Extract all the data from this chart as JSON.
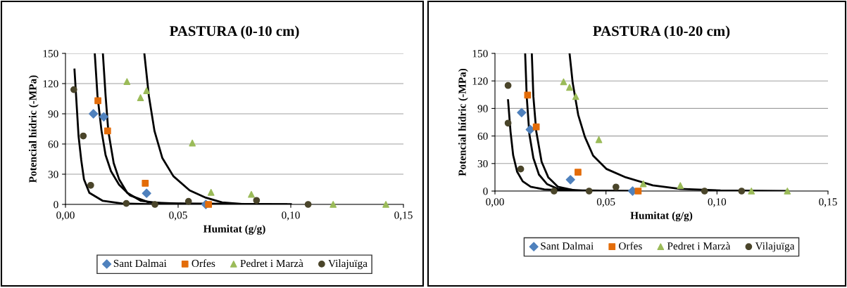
{
  "chart_data": [
    {
      "type": "scatter",
      "title": "PASTURA (0-10 cm)",
      "xlabel": "Humitat (g/g)",
      "ylabel": "Potencial hídric (-MPa)",
      "xlim": [
        0,
        0.15
      ],
      "xticks": [
        {
          "value": 0,
          "label": "0,00"
        },
        {
          "value": 0.05,
          "label": "0,05"
        },
        {
          "value": 0.1,
          "label": "0,10"
        },
        {
          "value": 0.15,
          "label": "0,15"
        }
      ],
      "ylim": [
        0,
        150
      ],
      "yticks": [
        0,
        30,
        60,
        90,
        120,
        150
      ],
      "grid": "y",
      "legend": "bottom",
      "series": [
        {
          "name": "Sant Dalmai",
          "color": "#4f81bd",
          "marker": "diamond",
          "x": [
            0.0124,
            0.017,
            0.036,
            0.0623
          ],
          "values": [
            90,
            87,
            11,
            0
          ]
        },
        {
          "name": "Orfes",
          "color": "#e36c09",
          "marker": "square",
          "x": [
            0.0144,
            0.0187,
            0.0354,
            0.0635
          ],
          "values": [
            103,
            73,
            21,
            0
          ]
        },
        {
          "name": "Pedret i Marzà",
          "color": "#9bbb59",
          "marker": "triangle",
          "x": [
            0.0273,
            0.0333,
            0.036,
            0.0563,
            0.0646,
            0.0825,
            0.1188,
            0.1422
          ],
          "values": [
            122,
            106,
            113,
            61,
            12,
            10,
            0,
            0
          ]
        },
        {
          "name": "Vilajuïga",
          "color": "#4a452a",
          "marker": "circle",
          "x": [
            0.0037,
            0.0079,
            0.0112,
            0.027,
            0.0397,
            0.0546,
            0.0848,
            0.1077
          ],
          "values": [
            114,
            68,
            19,
            1,
            0,
            3,
            4,
            0
          ]
        },
        {
          "type": "line",
          "color": "#000000",
          "marker": "none",
          "x": [
            0.004,
            0.0058,
            0.007,
            0.0082,
            0.0106,
            0.0166,
            0.025,
            0.037,
            0.091
          ],
          "values": [
            134,
            68,
            44,
            25,
            11.5,
            3.5,
            1,
            0.2,
            0
          ]
        },
        {
          "type": "line",
          "color": "#000000",
          "marker": "none",
          "x": [
            0.013,
            0.0142,
            0.016,
            0.0178,
            0.0202,
            0.0238,
            0.0286,
            0.037,
            0.0551,
            0.1
          ],
          "values": [
            150,
            108,
            73,
            49,
            33,
            19.5,
            9,
            2,
            0.3,
            0
          ]
        },
        {
          "type": "line",
          "color": "#000000",
          "marker": "none",
          "x": [
            0.0166,
            0.0178,
            0.019,
            0.0214,
            0.0238,
            0.0274,
            0.0335,
            0.043,
            0.1
          ],
          "values": [
            150,
            108,
            73,
            41,
            25,
            11.5,
            3.5,
            1,
            0
          ]
        },
        {
          "type": "line",
          "color": "#000000",
          "marker": "none",
          "x": [
            0.035,
            0.037,
            0.0395,
            0.043,
            0.0479,
            0.0551,
            0.0623,
            0.0695,
            0.0792,
            0.098
          ],
          "values": [
            150,
            108,
            73,
            46,
            28,
            14,
            6.7,
            2,
            0.3,
            0
          ]
        }
      ]
    },
    {
      "type": "scatter",
      "title": "PASTURA (10-20 cm)",
      "xlabel": "Humitat (g/g)",
      "ylabel": "Potencial hídric (-MPa)",
      "xlim": [
        0,
        0.15
      ],
      "xticks": [
        {
          "value": 0,
          "label": "0,00"
        },
        {
          "value": 0.05,
          "label": "0,05"
        },
        {
          "value": 0.1,
          "label": "0,10"
        },
        {
          "value": 0.15,
          "label": "0,15"
        }
      ],
      "ylim": [
        0,
        150
      ],
      "yticks": [
        0,
        30,
        60,
        90,
        120,
        150
      ],
      "grid": "y",
      "legend": "bottom",
      "series": [
        {
          "name": "Sant Dalmai",
          "color": "#4f81bd",
          "marker": "diamond",
          "x": [
            0.012,
            0.0159,
            0.034,
            0.062
          ],
          "values": [
            85.5,
            67,
            12.4,
            0
          ]
        },
        {
          "name": "Orfes",
          "color": "#e36c09",
          "marker": "square",
          "x": [
            0.0147,
            0.0186,
            0.0374,
            0.0645
          ],
          "values": [
            104.6,
            70,
            20.6,
            0
          ]
        },
        {
          "name": "Pedret i Marzà",
          "color": "#9bbb59",
          "marker": "triangle",
          "x": [
            0.0309,
            0.0336,
            0.0364,
            0.0468,
            0.0668,
            0.0835,
            0.1155,
            0.1317
          ],
          "values": [
            119,
            113,
            103,
            56,
            8,
            6,
            0,
            0
          ]
        },
        {
          "name": "Vilajuïga",
          "color": "#4a452a",
          "marker": "circle",
          "x": [
            0.0059,
            0.0059,
            0.0116,
            0.0266,
            0.0424,
            0.0545,
            0.0944,
            0.1111
          ],
          "values": [
            115,
            74,
            24,
            0,
            0,
            4.4,
            0,
            0
          ]
        },
        {
          "type": "line",
          "color": "#000000",
          "marker": "none",
          "x": [
            0.0059,
            0.007,
            0.0082,
            0.01,
            0.0125,
            0.0161,
            0.0222,
            0.0344,
            0.0527
          ],
          "values": [
            99,
            65,
            39,
            21,
            10.6,
            4.7,
            1.8,
            0.3,
            0
          ]
        },
        {
          "type": "line",
          "color": "#000000",
          "marker": "none",
          "x": [
            0.0136,
            0.0143,
            0.0155,
            0.0173,
            0.0198,
            0.0234,
            0.0283,
            0.0405,
            0.065
          ],
          "values": [
            150,
            103,
            62,
            36,
            18,
            7.7,
            2.4,
            0.3,
            0
          ]
        },
        {
          "type": "line",
          "color": "#000000",
          "marker": "none",
          "x": [
            0.0166,
            0.0173,
            0.0186,
            0.021,
            0.024,
            0.0283,
            0.0357,
            0.065
          ],
          "values": [
            150,
            103,
            65,
            32,
            15,
            4.7,
            0.9,
            0
          ]
        },
        {
          "type": "line",
          "color": "#000000",
          "marker": "none",
          "x": [
            0.0336,
            0.035,
            0.0375,
            0.0405,
            0.0442,
            0.0503,
            0.0589,
            0.0711,
            0.0833,
            0.1016,
            0.132
          ],
          "values": [
            150,
            118,
            83,
            59,
            38.6,
            24,
            15,
            6.2,
            2.4,
            0.6,
            0
          ]
        }
      ]
    }
  ]
}
